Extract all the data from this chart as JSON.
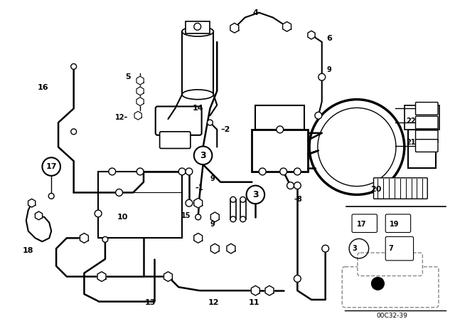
{
  "bg_color": "#ffffff",
  "line_color": "#000000",
  "fig_width": 6.4,
  "fig_height": 4.48,
  "dpi": 100,
  "catalog_number": "00C32-39"
}
